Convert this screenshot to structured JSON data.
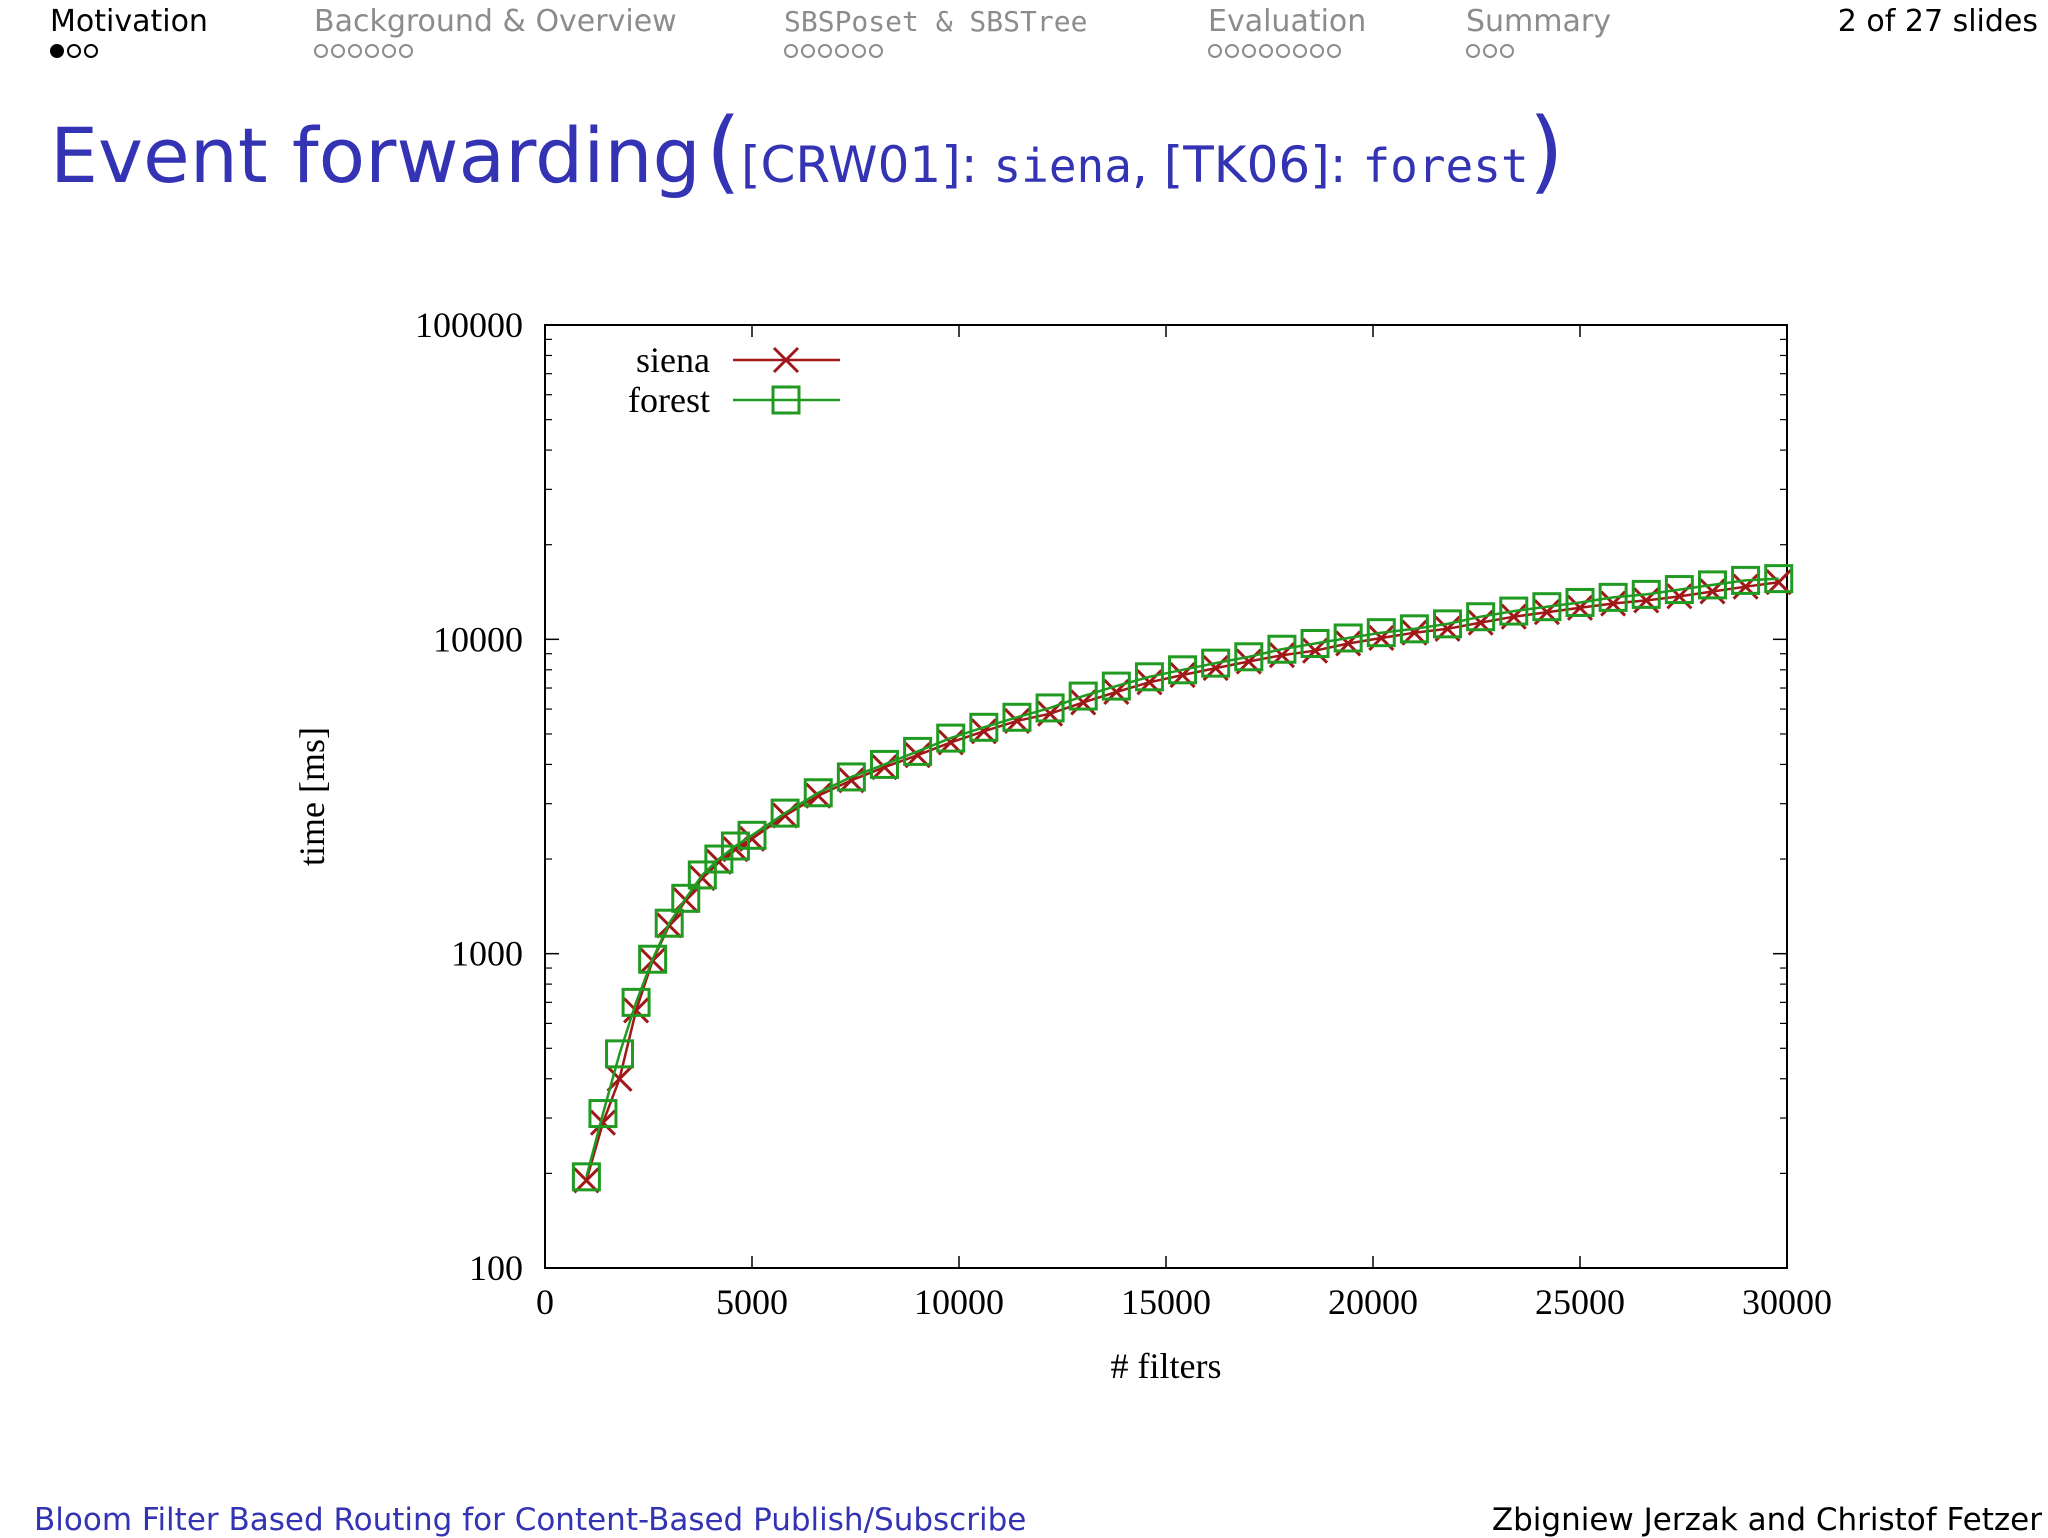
{
  "nav": {
    "sections": [
      {
        "label": "Motivation",
        "dots": 3,
        "filled": 1,
        "active": true,
        "mono": false
      },
      {
        "label": "Background & Overview",
        "dots": 6,
        "filled": 0,
        "active": false,
        "mono": false
      },
      {
        "label": "SBSPoset & SBSTree",
        "dots": 6,
        "filled": 0,
        "active": false,
        "mono": true
      },
      {
        "label": "Evaluation",
        "dots": 8,
        "filled": 0,
        "active": false,
        "mono": false
      },
      {
        "label": "Summary",
        "dots": 3,
        "filled": 0,
        "active": false,
        "mono": false
      }
    ],
    "slide_counter": "2 of 27 slides"
  },
  "title": {
    "main": "Event forwarding",
    "open_paren": "(",
    "ref1": "[CRW01]",
    "sep1": ": ",
    "sys1": "siena",
    "comma": ", ",
    "ref2": "[TK06]",
    "sep2": ": ",
    "sys2": "forest",
    "close_paren": ")"
  },
  "footer": {
    "left": "Bloom Filter Based Routing for Content-Based Publish/Subscribe",
    "right": "Zbigniew Jerzak and Christof Fetzer"
  },
  "colors": {
    "accent": "#3333b3",
    "siena": "#a01818",
    "forest": "#209a20"
  },
  "chart_data": {
    "type": "line",
    "xlabel": "# filters",
    "ylabel": "time [ms]",
    "xlim": [
      0,
      30000
    ],
    "ylim": [
      100,
      100000
    ],
    "yscale": "log",
    "xticks": [
      0,
      5000,
      10000,
      15000,
      20000,
      25000,
      30000
    ],
    "yticks": [
      100,
      1000,
      10000,
      100000
    ],
    "legend": "top-left",
    "x": [
      1000,
      1400,
      1800,
      2200,
      2600,
      3000,
      3400,
      3800,
      4200,
      4600,
      5000,
      5800,
      6600,
      7400,
      8200,
      9000,
      9800,
      10600,
      11400,
      12200,
      13000,
      13800,
      14600,
      15400,
      16200,
      17000,
      17800,
      18600,
      19400,
      20200,
      21000,
      21800,
      22600,
      23400,
      24200,
      25000,
      25800,
      26600,
      27400,
      28200,
      29000,
      29800
    ],
    "series": [
      {
        "name": "siena",
        "marker": "x",
        "color": "#a01818",
        "values": [
          190,
          290,
          400,
          660,
          950,
          1230,
          1480,
          1740,
          1960,
          2150,
          2320,
          2750,
          3180,
          3560,
          3920,
          4280,
          4700,
          5100,
          5500,
          5800,
          6300,
          6800,
          7300,
          7700,
          8100,
          8500,
          8900,
          9200,
          9700,
          10100,
          10500,
          10800,
          11300,
          11800,
          12200,
          12600,
          13000,
          13300,
          13700,
          14200,
          14700,
          15200
        ]
      },
      {
        "name": "forest",
        "marker": "square",
        "color": "#209a20",
        "values": [
          195,
          310,
          480,
          700,
          960,
          1250,
          1500,
          1780,
          2000,
          2200,
          2380,
          2800,
          3250,
          3650,
          4000,
          4400,
          4850,
          5250,
          5650,
          6050,
          6600,
          7100,
          7600,
          8000,
          8400,
          8800,
          9300,
          9700,
          10100,
          10500,
          10800,
          11200,
          11800,
          12300,
          12700,
          13100,
          13600,
          13900,
          14400,
          14900,
          15400,
          15600
        ]
      }
    ]
  }
}
